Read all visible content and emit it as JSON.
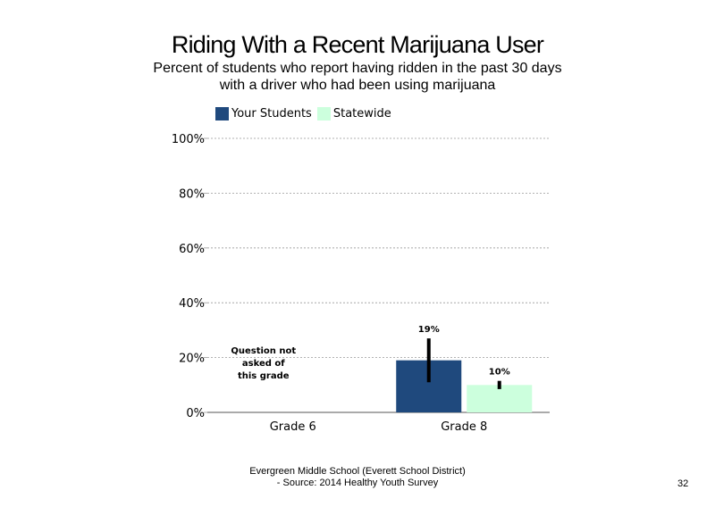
{
  "slide": {
    "page_number": "32",
    "footer_line1": "Evergreen Middle School (Everett School District)",
    "footer_line2": "- Source: 2014 Healthy Youth Survey"
  },
  "chart_data": {
    "type": "bar",
    "title": "Riding With a Recent Marijuana User",
    "subtitle": "Percent of students who report having ridden in the past 30 days with a driver who had been using marijuana",
    "categories": [
      "Grade 6",
      "Grade 8"
    ],
    "series": [
      {
        "name": "Your Students",
        "color": "#1f497d",
        "values": [
          null,
          19
        ],
        "labels": [
          "",
          "19%"
        ],
        "error_low": [
          null,
          11
        ],
        "error_high": [
          null,
          27
        ]
      },
      {
        "name": "Statewide",
        "color": "#ccffdd",
        "values": [
          null,
          10
        ],
        "labels": [
          "",
          "10%"
        ],
        "error_low": [
          null,
          8.5
        ],
        "error_high": [
          null,
          11.5
        ]
      }
    ],
    "yticks": [
      "0%",
      "20%",
      "40%",
      "60%",
      "80%",
      "100%"
    ],
    "ylim": [
      0,
      100
    ],
    "grid": true,
    "legend_position": "top-left",
    "annotations": [
      {
        "category": "Grade 6",
        "lines": [
          "Question not",
          "asked of",
          "this grade"
        ]
      }
    ]
  }
}
